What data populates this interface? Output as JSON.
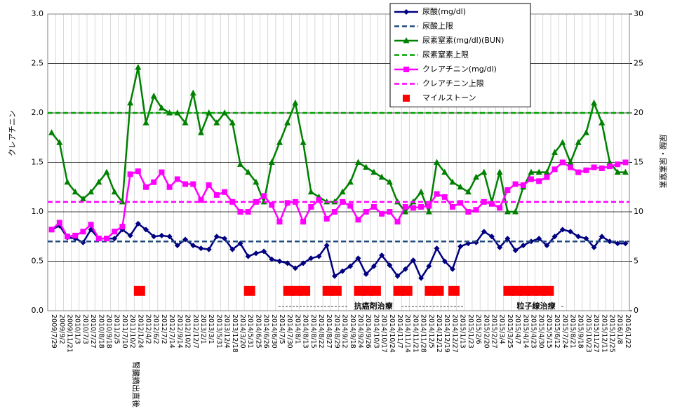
{
  "chart_data": {
    "type": "line",
    "ylabel": "クレアチニン",
    "y2label": "尿酸・尿素窒素",
    "ylim": [
      0,
      3
    ],
    "yticks": [
      {
        "value": 0,
        "label": "0.0"
      },
      0.5,
      {
        "value": 1,
        "label": "1.0"
      },
      1.5,
      {
        "value": 2,
        "label": "2.0"
      },
      2.5,
      {
        "value": 3,
        "label": "3.0"
      }
    ],
    "y2lim": [
      0,
      30
    ],
    "y2ticks": [
      0,
      5,
      10,
      15,
      20,
      25,
      30
    ],
    "grid": true,
    "legend": "top-right",
    "categories": [
      "2009/7/29",
      "2009/9/2",
      "2009/11/21",
      "2010/1/3",
      "2010/7/3",
      "2010/7/27",
      "2010/8/18",
      "2010/9/18",
      "2011/2/5",
      "2011/7/10",
      "2011/10/2",
      "2012/1/24",
      "2012/4/2",
      "2012/6/2",
      "2012/7/2",
      "2012/7/14",
      "2012/9/14",
      "2012/10/2",
      "2012/12/7",
      "2013/2/1",
      "2013/3/1",
      "2013/5/31",
      "2013/12/4",
      "2013/12/18",
      "2014/3/20",
      "2014/5/31",
      "2014/6/25",
      "2014/6/26",
      "2014/6/30",
      "2014/7/5",
      "2014/7/30",
      "2014/8/1",
      "2014/8/13",
      "2014/8/15",
      "2014/8/22",
      "2014/8/27",
      "2014/8/29",
      "2014/9/12",
      "2014/9/18",
      "2014/9/24",
      "2014/9/26",
      "2014/10/3",
      "2014/10/17",
      "2014/10/24",
      "2014/11/7",
      "2014/11/14",
      "2014/11/21",
      "2014/11/28",
      "2014/12/5",
      "2014/12/12",
      "2014/12/19",
      "2014/12/27",
      "2015/1/13",
      "2015/1/23",
      "2015/2/6",
      "2015/2/20",
      "2015/2/27",
      "2015/3/4",
      "2015/3/25",
      "2015/4/7",
      "2015/4/14",
      "2015/4/23",
      "2015/4/30",
      "2015/5/15",
      "2015/6/12",
      "2015/7/24",
      "2015/8/21",
      "2015/9/18",
      "2015/10/23",
      "2015/11/27",
      "2015/12/11",
      "2015/12/25",
      "2016/1/8",
      "2016/1/22"
    ],
    "series": [
      {
        "name": "尿酸(mg/dl)",
        "kind": "line",
        "marker": "diamond",
        "color": "#000080",
        "axis": "y2",
        "values": [
          8.2,
          8.6,
          7.4,
          7.3,
          6.9,
          8.2,
          7.3,
          7.3,
          7.3,
          8.2,
          7.6,
          8.8,
          8.2,
          7.5,
          7.6,
          7.5,
          6.6,
          7.2,
          6.6,
          6.3,
          6.2,
          7.5,
          7.3,
          6.2,
          6.8,
          5.5,
          5.8,
          6.0,
          5.2,
          5.0,
          4.8,
          4.3,
          4.8,
          5.3,
          5.5,
          6.6,
          3.5,
          4.0,
          4.5,
          5.3,
          3.7,
          4.5,
          5.6,
          4.6,
          3.5,
          4.2,
          5.1,
          3.3,
          4.5,
          6.3,
          5.0,
          4.2,
          6.5,
          6.8,
          6.9,
          8.0,
          7.5,
          6.4,
          7.3,
          6.1,
          6.6,
          7.0,
          7.3,
          6.6,
          7.5,
          8.2,
          8.0,
          7.5,
          7.3,
          6.4,
          7.5,
          7.0,
          6.8,
          6.8
        ]
      },
      {
        "name": "尿酸上限",
        "kind": "limit",
        "color": "#1f497d",
        "axis": "y2",
        "value": 7
      },
      {
        "name": "尿素窒素(mg/dl)(BUN)",
        "kind": "line",
        "marker": "triangle",
        "color": "#008000",
        "axis": "y2",
        "values": [
          18,
          17,
          13,
          12,
          11.3,
          12,
          13,
          14,
          12,
          11,
          21,
          24.6,
          19,
          21.7,
          20.5,
          20,
          20,
          19,
          22,
          18,
          20,
          19,
          20,
          19,
          14.8,
          14,
          13,
          11,
          15,
          17,
          19,
          21,
          17,
          12,
          11.5,
          11,
          11,
          12,
          13,
          15,
          14.5,
          14,
          13.5,
          13,
          11,
          10,
          11,
          12,
          10,
          15,
          14,
          13,
          12.5,
          12,
          13.5,
          14,
          11,
          14,
          10,
          10,
          12.5,
          14,
          14,
          14,
          16,
          17,
          15,
          17,
          18,
          21,
          19,
          15,
          14,
          14
        ]
      },
      {
        "name": "尿素窒素上限",
        "kind": "limit",
        "color": "#00a000",
        "axis": "y2",
        "value": 20
      },
      {
        "name": "クレアチニン(mg/dl)",
        "kind": "line",
        "marker": "square",
        "color": "#ff00ff",
        "values": [
          0.82,
          0.89,
          0.75,
          0.76,
          0.8,
          0.87,
          0.73,
          0.73,
          0.8,
          0.85,
          1.38,
          1.41,
          1.25,
          1.3,
          1.4,
          1.25,
          1.33,
          1.28,
          1.28,
          1.12,
          1.27,
          1.17,
          1.2,
          1.1,
          1.0,
          1.0,
          1.1,
          1.16,
          1.07,
          0.9,
          1.09,
          1.1,
          0.9,
          1.05,
          1.12,
          0.93,
          1.0,
          1.1,
          1.06,
          0.92,
          1.0,
          1.05,
          0.98,
          1.0,
          0.9,
          1.05,
          1.04,
          1.05,
          1.06,
          1.18,
          1.15,
          1.05,
          1.09,
          1.0,
          1.02,
          1.1,
          1.08,
          1.04,
          1.22,
          1.28,
          1.27,
          1.33,
          1.31,
          1.35,
          1.43,
          1.5,
          1.45,
          1.4,
          1.42,
          1.45,
          1.44,
          1.46,
          1.48,
          1.5
        ]
      },
      {
        "name": "クレアチニン上限",
        "kind": "limit",
        "color": "#ff00ff",
        "value": 1.1
      },
      {
        "name": "マイルストーン",
        "kind": "milestone",
        "color": "#ff0000",
        "values": [
          null,
          null,
          null,
          null,
          null,
          null,
          null,
          null,
          null,
          null,
          null,
          0.2,
          null,
          null,
          null,
          null,
          null,
          null,
          null,
          null,
          null,
          null,
          null,
          null,
          null,
          0.2,
          null,
          null,
          null,
          null,
          0.2,
          0.2,
          0.2,
          null,
          null,
          0.2,
          0.2,
          null,
          null,
          0.2,
          0.2,
          0.2,
          null,
          null,
          0.2,
          0.2,
          null,
          null,
          0.2,
          0.2,
          null,
          0.2,
          null,
          null,
          null,
          null,
          null,
          null,
          0.2,
          0.2,
          0.2,
          0.2,
          0.2,
          0.2,
          null,
          null,
          null,
          null,
          null,
          null,
          null,
          null,
          null,
          null
        ]
      }
    ],
    "annotations": [
      "腎臓摘出直後",
      "抗癌剤治療",
      "粒子線治療"
    ]
  }
}
